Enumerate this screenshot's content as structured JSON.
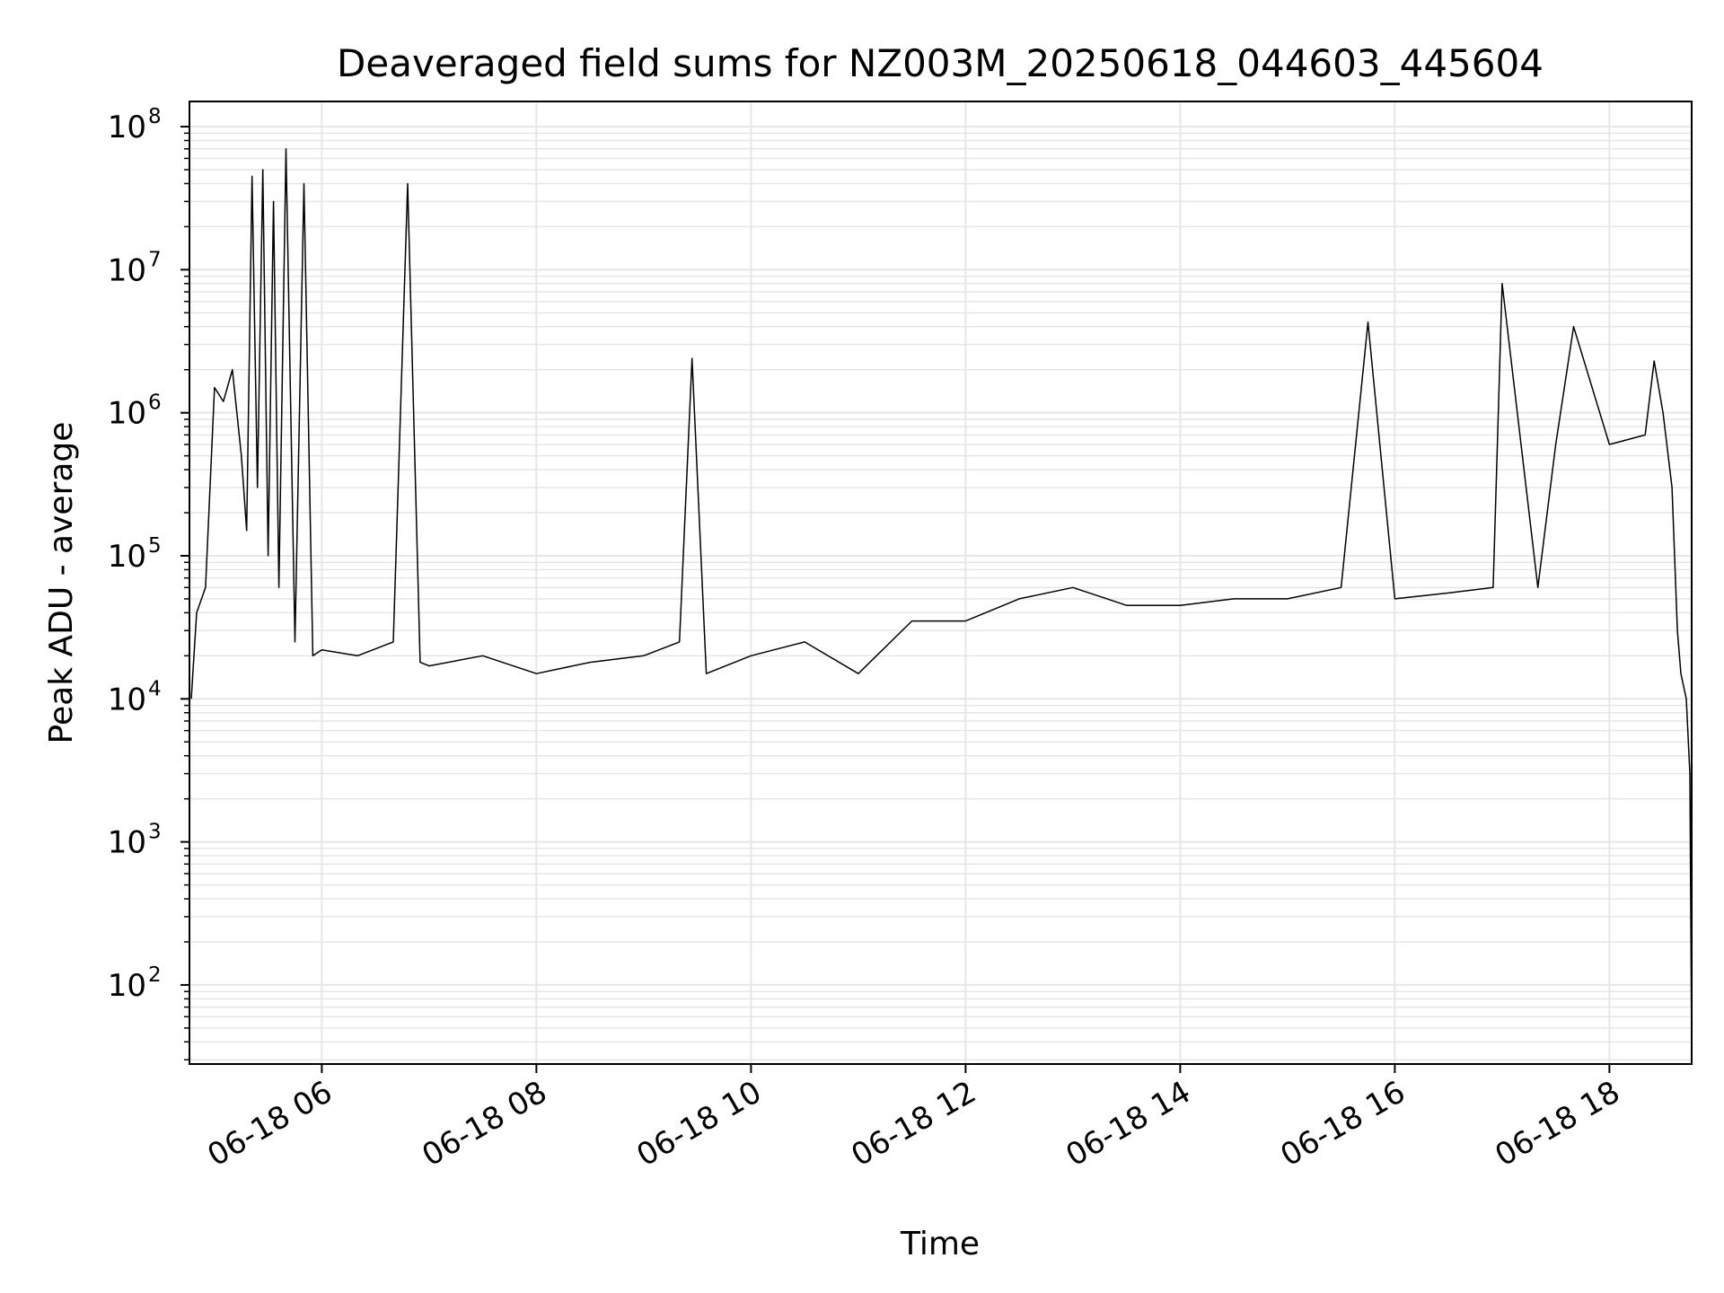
{
  "chart_data": {
    "type": "line",
    "title": "Deaveraged field sums for NZ003M_20250618_044603_445604",
    "xlabel": "Time",
    "ylabel": "Peak ADU - average",
    "y_scale": "log",
    "ylim": [
      28,
      150000000
    ],
    "xlim": [
      "2025-06-18 04:46",
      "2025-06-18 18:46"
    ],
    "grid": true,
    "x_ticks": [
      "06-18 06",
      "06-18 08",
      "06-18 10",
      "06-18 12",
      "06-18 14",
      "06-18 16",
      "06-18 18"
    ],
    "y_ticks": [
      {
        "base": "10",
        "exp": "2",
        "value": 100
      },
      {
        "base": "10",
        "exp": "3",
        "value": 1000
      },
      {
        "base": "10",
        "exp": "4",
        "value": 10000
      },
      {
        "base": "10",
        "exp": "5",
        "value": 100000
      },
      {
        "base": "10",
        "exp": "6",
        "value": 1000000
      },
      {
        "base": "10",
        "exp": "7",
        "value": 10000000
      },
      {
        "base": "10",
        "exp": "8",
        "value": 100000000
      }
    ],
    "line_color": "#000000",
    "grid_color": "#e6e6e6",
    "series": [
      {
        "x": [
          "2025-06-18 04:47",
          "2025-06-18 04:50",
          "2025-06-18 04:55",
          "2025-06-18 05:00",
          "2025-06-18 05:05",
          "2025-06-18 05:10",
          "2025-06-18 05:15",
          "2025-06-18 05:18",
          "2025-06-18 05:21",
          "2025-06-18 05:24",
          "2025-06-18 05:27",
          "2025-06-18 05:30",
          "2025-06-18 05:33",
          "2025-06-18 05:36",
          "2025-06-18 05:40",
          "2025-06-18 05:45",
          "2025-06-18 05:50",
          "2025-06-18 05:55",
          "2025-06-18 06:00",
          "2025-06-18 06:20",
          "2025-06-18 06:40",
          "2025-06-18 06:48",
          "2025-06-18 06:55",
          "2025-06-18 07:00",
          "2025-06-18 07:30",
          "2025-06-18 08:00",
          "2025-06-18 08:30",
          "2025-06-18 09:00",
          "2025-06-18 09:20",
          "2025-06-18 09:27",
          "2025-06-18 09:35",
          "2025-06-18 10:00",
          "2025-06-18 10:30",
          "2025-06-18 11:00",
          "2025-06-18 11:30",
          "2025-06-18 12:00",
          "2025-06-18 12:30",
          "2025-06-18 13:00",
          "2025-06-18 13:30",
          "2025-06-18 14:00",
          "2025-06-18 14:30",
          "2025-06-18 15:00",
          "2025-06-18 15:30",
          "2025-06-18 15:45",
          "2025-06-18 16:00",
          "2025-06-18 16:30",
          "2025-06-18 16:55",
          "2025-06-18 17:00",
          "2025-06-18 17:20",
          "2025-06-18 17:30",
          "2025-06-18 17:40",
          "2025-06-18 18:00",
          "2025-06-18 18:20",
          "2025-06-18 18:25",
          "2025-06-18 18:30",
          "2025-06-18 18:35",
          "2025-06-18 18:38",
          "2025-06-18 18:40",
          "2025-06-18 18:43",
          "2025-06-18 18:45",
          "2025-06-18 18:46"
        ],
        "y": [
          10000,
          40000,
          60000,
          1500000,
          1200000,
          2000000,
          500000,
          150000,
          45000000,
          300000,
          50000000,
          100000,
          30000000,
          60000,
          70000000,
          25000,
          40000000,
          20000,
          22000,
          20000,
          25000,
          40000000,
          18000,
          17000,
          20000,
          15000,
          18000,
          20000,
          25000,
          2400000,
          15000,
          20000,
          25000,
          15000,
          35000,
          35000,
          50000,
          60000,
          45000,
          45000,
          50000,
          50000,
          60000,
          4300000,
          50000,
          55000,
          60000,
          8000000,
          60000,
          600000,
          4000000,
          600000,
          700000,
          2300000,
          1000000,
          300000,
          30000,
          15000,
          10000,
          3000,
          35
        ]
      }
    ]
  }
}
